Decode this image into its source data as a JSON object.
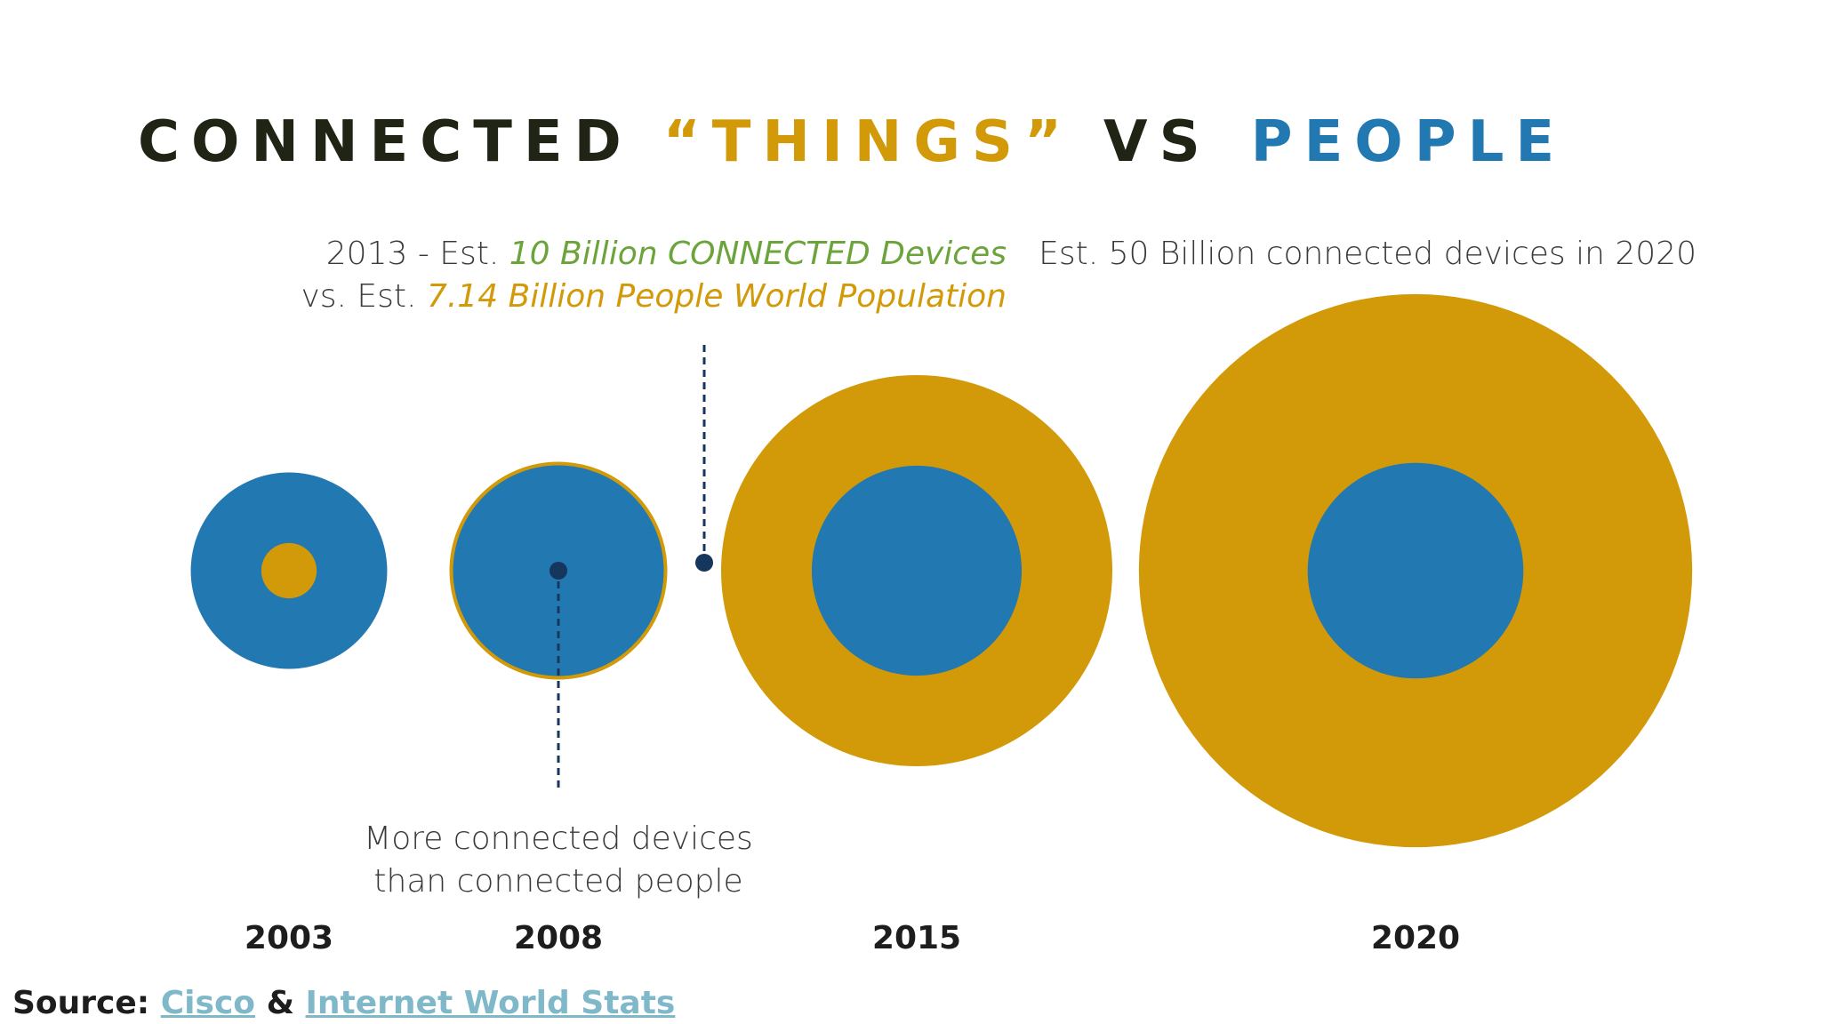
{
  "title": {
    "part1": "CONNECTED",
    "part2": "“THINGS”",
    "part3": "VS",
    "part4": "PEOPLE"
  },
  "annotations": {
    "a2013_prefix": "2013 - Est. ",
    "a2013_devices": "10 Billion CONNECTED Devices",
    "a2013_vs": "vs. Est. ",
    "a2013_population": "7.14 Billion People World Population",
    "a2020": "Est. 50 Billion connected devices in 2020",
    "more_line1": "More connected devices",
    "more_line2": "than connected people"
  },
  "source": {
    "label": "Source:",
    "link1": "Cisco",
    "amp": "&",
    "link2": "Internet World Stats"
  },
  "colors": {
    "devices": "#d29a08",
    "people": "#2278b1",
    "dark": "#1f2414",
    "marker": "#15375e"
  },
  "chart_data": {
    "type": "bubble",
    "title": "CONNECTED “THINGS” VS PEOPLE",
    "categories": [
      "2003",
      "2008",
      "2015",
      "2020"
    ],
    "series": [
      {
        "name": "Connected devices",
        "values": [
          0.5,
          7.5,
          25,
          50
        ]
      },
      {
        "name": "People",
        "values": [
          6.3,
          6.8,
          7.2,
          7.6
        ]
      }
    ],
    "units": "billions",
    "annotations": [
      "2013 - Est. 10 Billion CONNECTED Devices vs. Est. 7.14 Billion People World Population",
      "Est. 50 Billion connected devices in 2020",
      "More connected devices than connected people"
    ]
  }
}
